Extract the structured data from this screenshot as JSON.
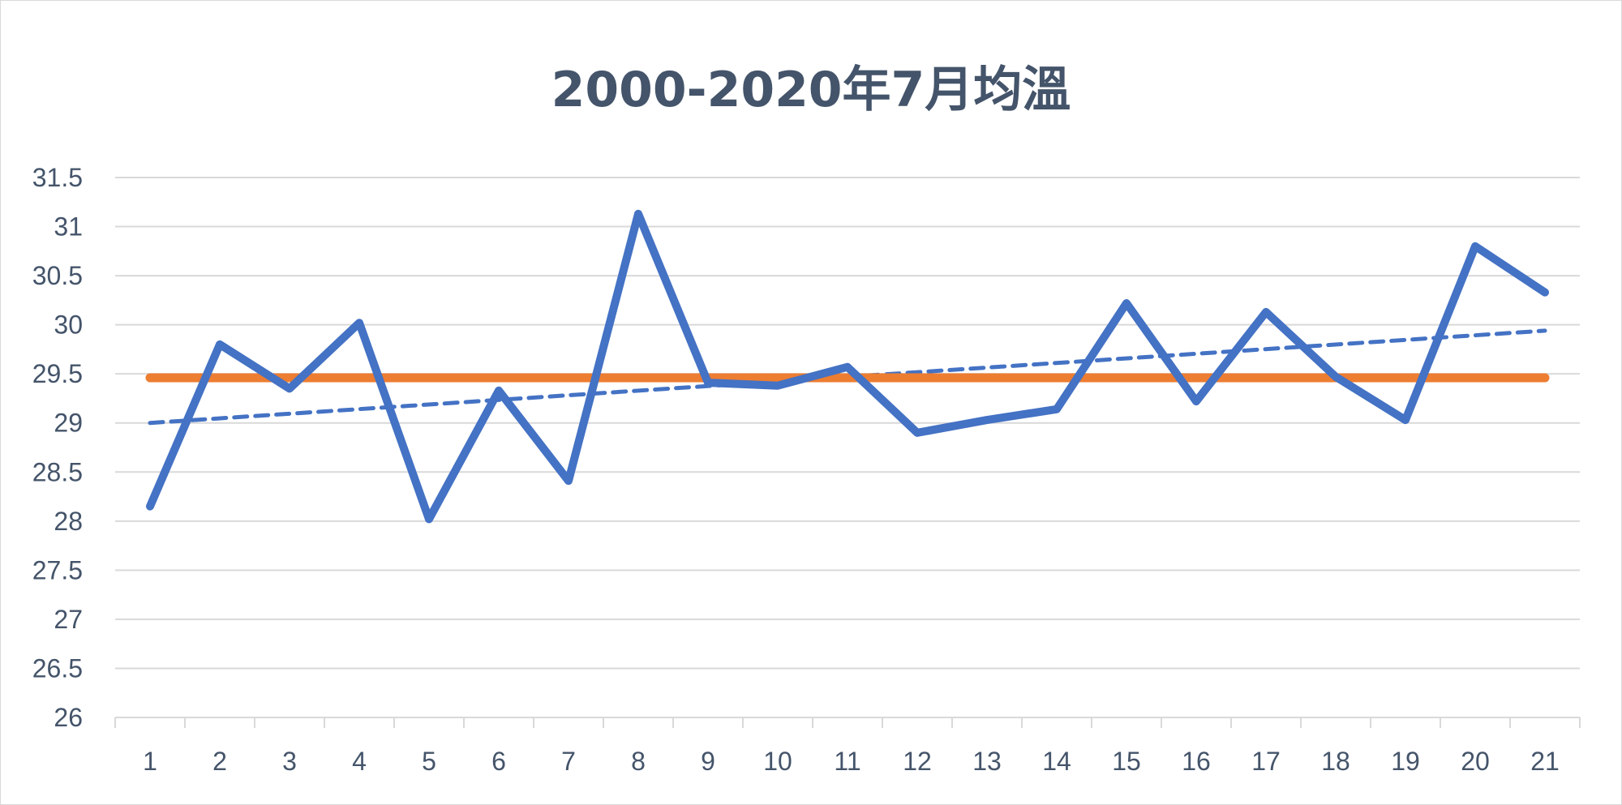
{
  "chart_data": {
    "type": "line",
    "title": "2000-2020年7月均溫",
    "xlabel": "",
    "ylabel": "",
    "categories": [
      "1",
      "2",
      "3",
      "4",
      "5",
      "6",
      "7",
      "8",
      "9",
      "10",
      "11",
      "12",
      "13",
      "14",
      "15",
      "16",
      "17",
      "18",
      "19",
      "20",
      "21"
    ],
    "ylim": [
      26,
      31.5
    ],
    "yticks": [
      "26",
      "26.5",
      "27",
      "27.5",
      "28",
      "28.5",
      "29",
      "29.5",
      "30",
      "30.5",
      "31",
      "31.5"
    ],
    "grid": true,
    "legend": "none",
    "series": [
      {
        "kind": "data",
        "color": "#4472c4",
        "values": [
          28.15,
          29.8,
          29.35,
          30.02,
          28.02,
          29.33,
          28.41,
          31.13,
          29.41,
          29.38,
          29.57,
          28.9,
          29.03,
          29.14,
          30.22,
          29.22,
          30.13,
          29.47,
          29.03,
          30.8,
          30.33
        ]
      },
      {
        "kind": "average",
        "color": "#ed7d31",
        "values": [
          29.46,
          29.46,
          29.46,
          29.46,
          29.46,
          29.46,
          29.46,
          29.46,
          29.46,
          29.46,
          29.46,
          29.46,
          29.46,
          29.46,
          29.46,
          29.46,
          29.46,
          29.46,
          29.46,
          29.46,
          29.46
        ]
      },
      {
        "kind": "trendline",
        "color": "#4472c4",
        "dashed": true,
        "start": 29.0,
        "end": 29.94
      }
    ]
  }
}
